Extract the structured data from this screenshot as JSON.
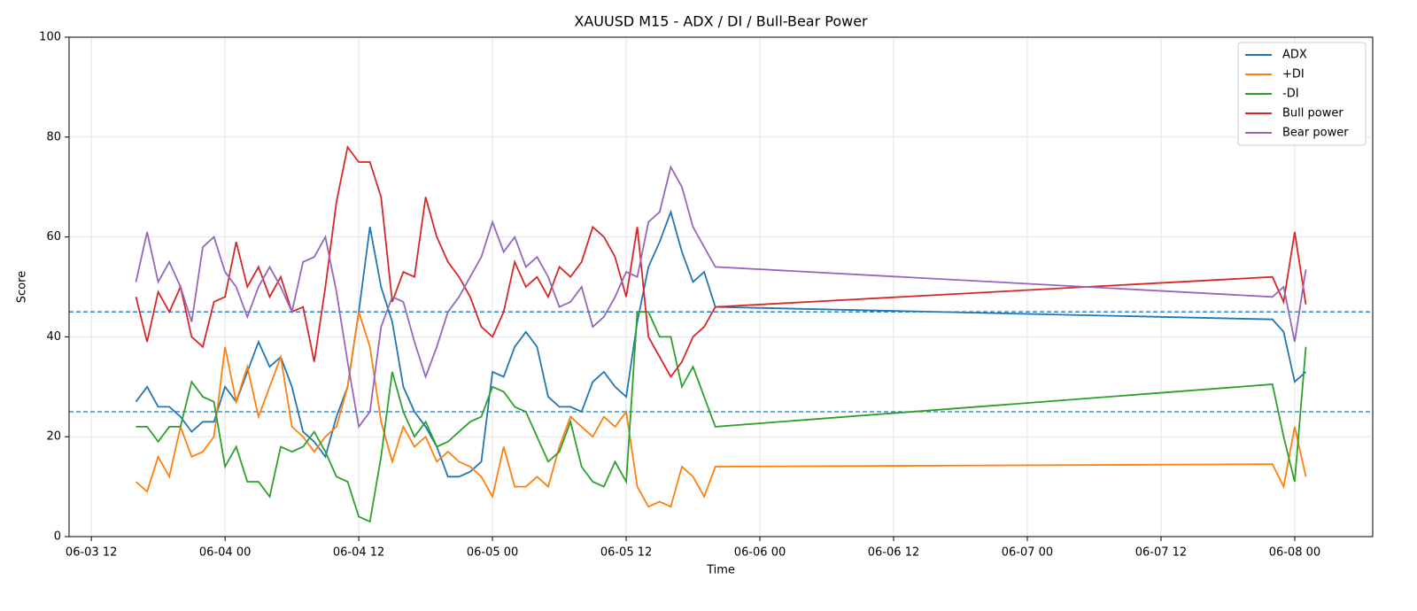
{
  "chart_data": {
    "type": "line",
    "title": "XAUUSD M15 - ADX / DI / Bull-Bear Power",
    "x_label": "Time",
    "y_label": "Score",
    "x": [
      "06-03 16",
      "06-03 17",
      "06-03 18",
      "06-03 19",
      "06-03 20",
      "06-03 21",
      "06-03 22",
      "06-03 23",
      "06-04 00",
      "06-04 01",
      "06-04 02",
      "06-04 03",
      "06-04 04",
      "06-04 05",
      "06-04 06",
      "06-04 07",
      "06-04 08",
      "06-04 09",
      "06-04 10",
      "06-04 11",
      "06-04 12",
      "06-04 13",
      "06-04 14",
      "06-04 15",
      "06-04 16",
      "06-04 17",
      "06-04 18",
      "06-04 19",
      "06-04 20",
      "06-04 21",
      "06-04 22",
      "06-04 23",
      "06-05 00",
      "06-05 01",
      "06-05 02",
      "06-05 03",
      "06-05 04",
      "06-05 05",
      "06-05 06",
      "06-05 07",
      "06-05 08",
      "06-05 09",
      "06-05 10",
      "06-05 11",
      "06-05 12",
      "06-05 13",
      "06-05 14",
      "06-05 15",
      "06-05 16",
      "06-05 17",
      "06-05 18",
      "06-05 19",
      "06-05 20",
      "06-07 22",
      "06-07 23",
      "06-08 00",
      "06-08 01"
    ],
    "series": [
      {
        "name": "ADX",
        "color": "#1f77b4",
        "values": [
          27,
          30,
          26,
          26,
          24,
          21,
          23,
          23,
          30,
          27,
          33,
          39,
          34,
          36,
          30,
          21,
          19,
          16,
          24,
          30,
          45,
          62,
          50,
          43,
          30,
          25,
          22,
          18,
          12,
          12,
          13,
          15,
          33,
          32,
          38,
          41,
          38,
          28,
          26,
          26,
          25,
          31,
          33,
          30,
          28,
          43,
          54,
          59,
          65,
          57,
          51,
          53,
          46,
          43.5,
          41,
          31,
          33
        ]
      },
      {
        "name": "+DI",
        "color": "#ff7f0e",
        "values": [
          11,
          9,
          16,
          12,
          22,
          16,
          17,
          20,
          38,
          27,
          34,
          24,
          30,
          36,
          22,
          20,
          17,
          20,
          22,
          30,
          45,
          38,
          23,
          15,
          22,
          18,
          20,
          15,
          17,
          15,
          14,
          12,
          8,
          18,
          10,
          10,
          12,
          10,
          18,
          24,
          22,
          20,
          24,
          22,
          25,
          10,
          6,
          7,
          6,
          14,
          12,
          8,
          14,
          14.5,
          10,
          22,
          12
        ]
      },
      {
        "name": "-DI",
        "color": "#2ca02c",
        "values": [
          22,
          22,
          19,
          22,
          22,
          31,
          28,
          27,
          14,
          18,
          11,
          11,
          8,
          18,
          17,
          18,
          21,
          17,
          12,
          11,
          4,
          3,
          16,
          33,
          25,
          20,
          23,
          18,
          19,
          21,
          23,
          24,
          30,
          29,
          26,
          25,
          20,
          15,
          17,
          23,
          14,
          11,
          10,
          15,
          11,
          45,
          45,
          40,
          40,
          30,
          34,
          28,
          22,
          30.5,
          20,
          11,
          38
        ]
      },
      {
        "name": "Bull power",
        "color": "#d62728",
        "values": [
          48,
          39,
          49,
          45,
          50,
          40,
          38,
          47,
          48,
          59,
          50,
          54,
          48,
          52,
          45,
          46,
          35,
          50,
          67,
          78,
          75,
          75,
          68,
          47,
          53,
          52,
          68,
          60,
          55,
          52,
          48,
          42,
          40,
          45,
          55,
          50,
          52,
          48,
          54,
          52,
          55,
          62,
          60,
          56,
          48,
          62,
          40,
          36,
          32,
          35,
          40,
          42,
          46,
          52,
          47,
          61,
          46.5
        ]
      },
      {
        "name": "Bear power",
        "color": "#9467bd",
        "values": [
          51,
          61,
          51,
          55,
          50,
          43,
          58,
          60,
          53,
          50,
          44,
          50,
          54,
          50,
          45,
          55,
          56,
          60,
          49,
          35,
          22,
          25,
          42,
          48,
          47,
          39,
          32,
          38,
          45,
          48,
          52,
          56,
          63,
          57,
          60,
          54,
          56,
          52,
          46,
          47,
          50,
          42,
          44,
          48,
          53,
          52,
          63,
          65,
          74,
          70,
          62,
          58,
          54,
          48,
          50,
          39,
          53.5
        ]
      }
    ],
    "hlines": [
      45,
      25
    ],
    "hline_color": "#1f77b4",
    "xlim": [
      "06-03 10",
      "06-08 07"
    ],
    "xticks": [
      "06-03 12",
      "06-04 00",
      "06-04 12",
      "06-05 00",
      "06-05 12",
      "06-06 00",
      "06-06 12",
      "06-07 00",
      "06-07 12",
      "06-08 00"
    ],
    "ylim": [
      0,
      100
    ],
    "yticks": [
      0,
      20,
      40,
      60,
      80,
      100
    ],
    "grid": true,
    "legend": "upper right"
  }
}
